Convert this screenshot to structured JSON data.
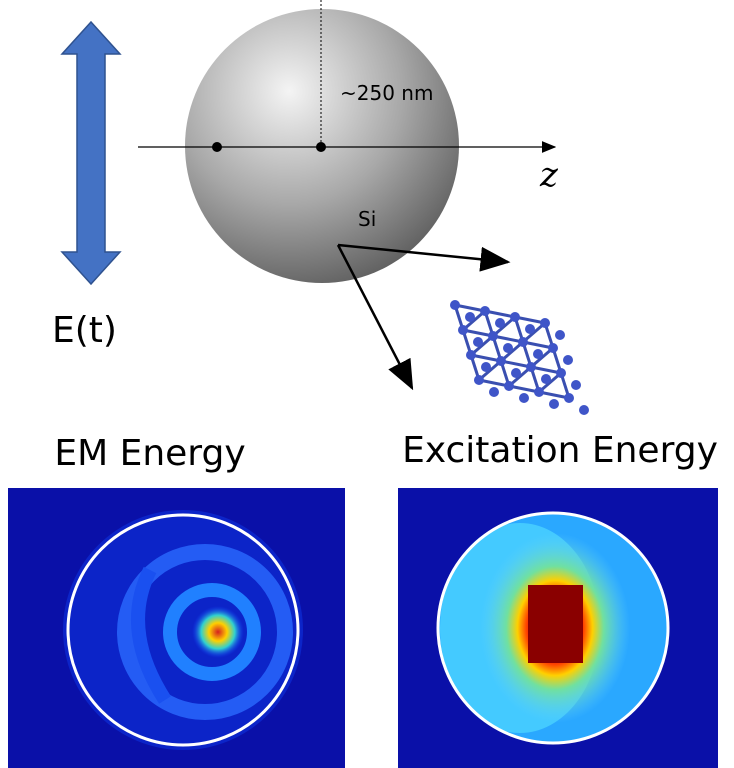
{
  "labels": {
    "size": "~250 nm",
    "axis": "z",
    "material": "Si",
    "field": "E(t)"
  },
  "panels": [
    {
      "title": "EM Energy"
    },
    {
      "title": "Excitation Energy"
    }
  ]
}
